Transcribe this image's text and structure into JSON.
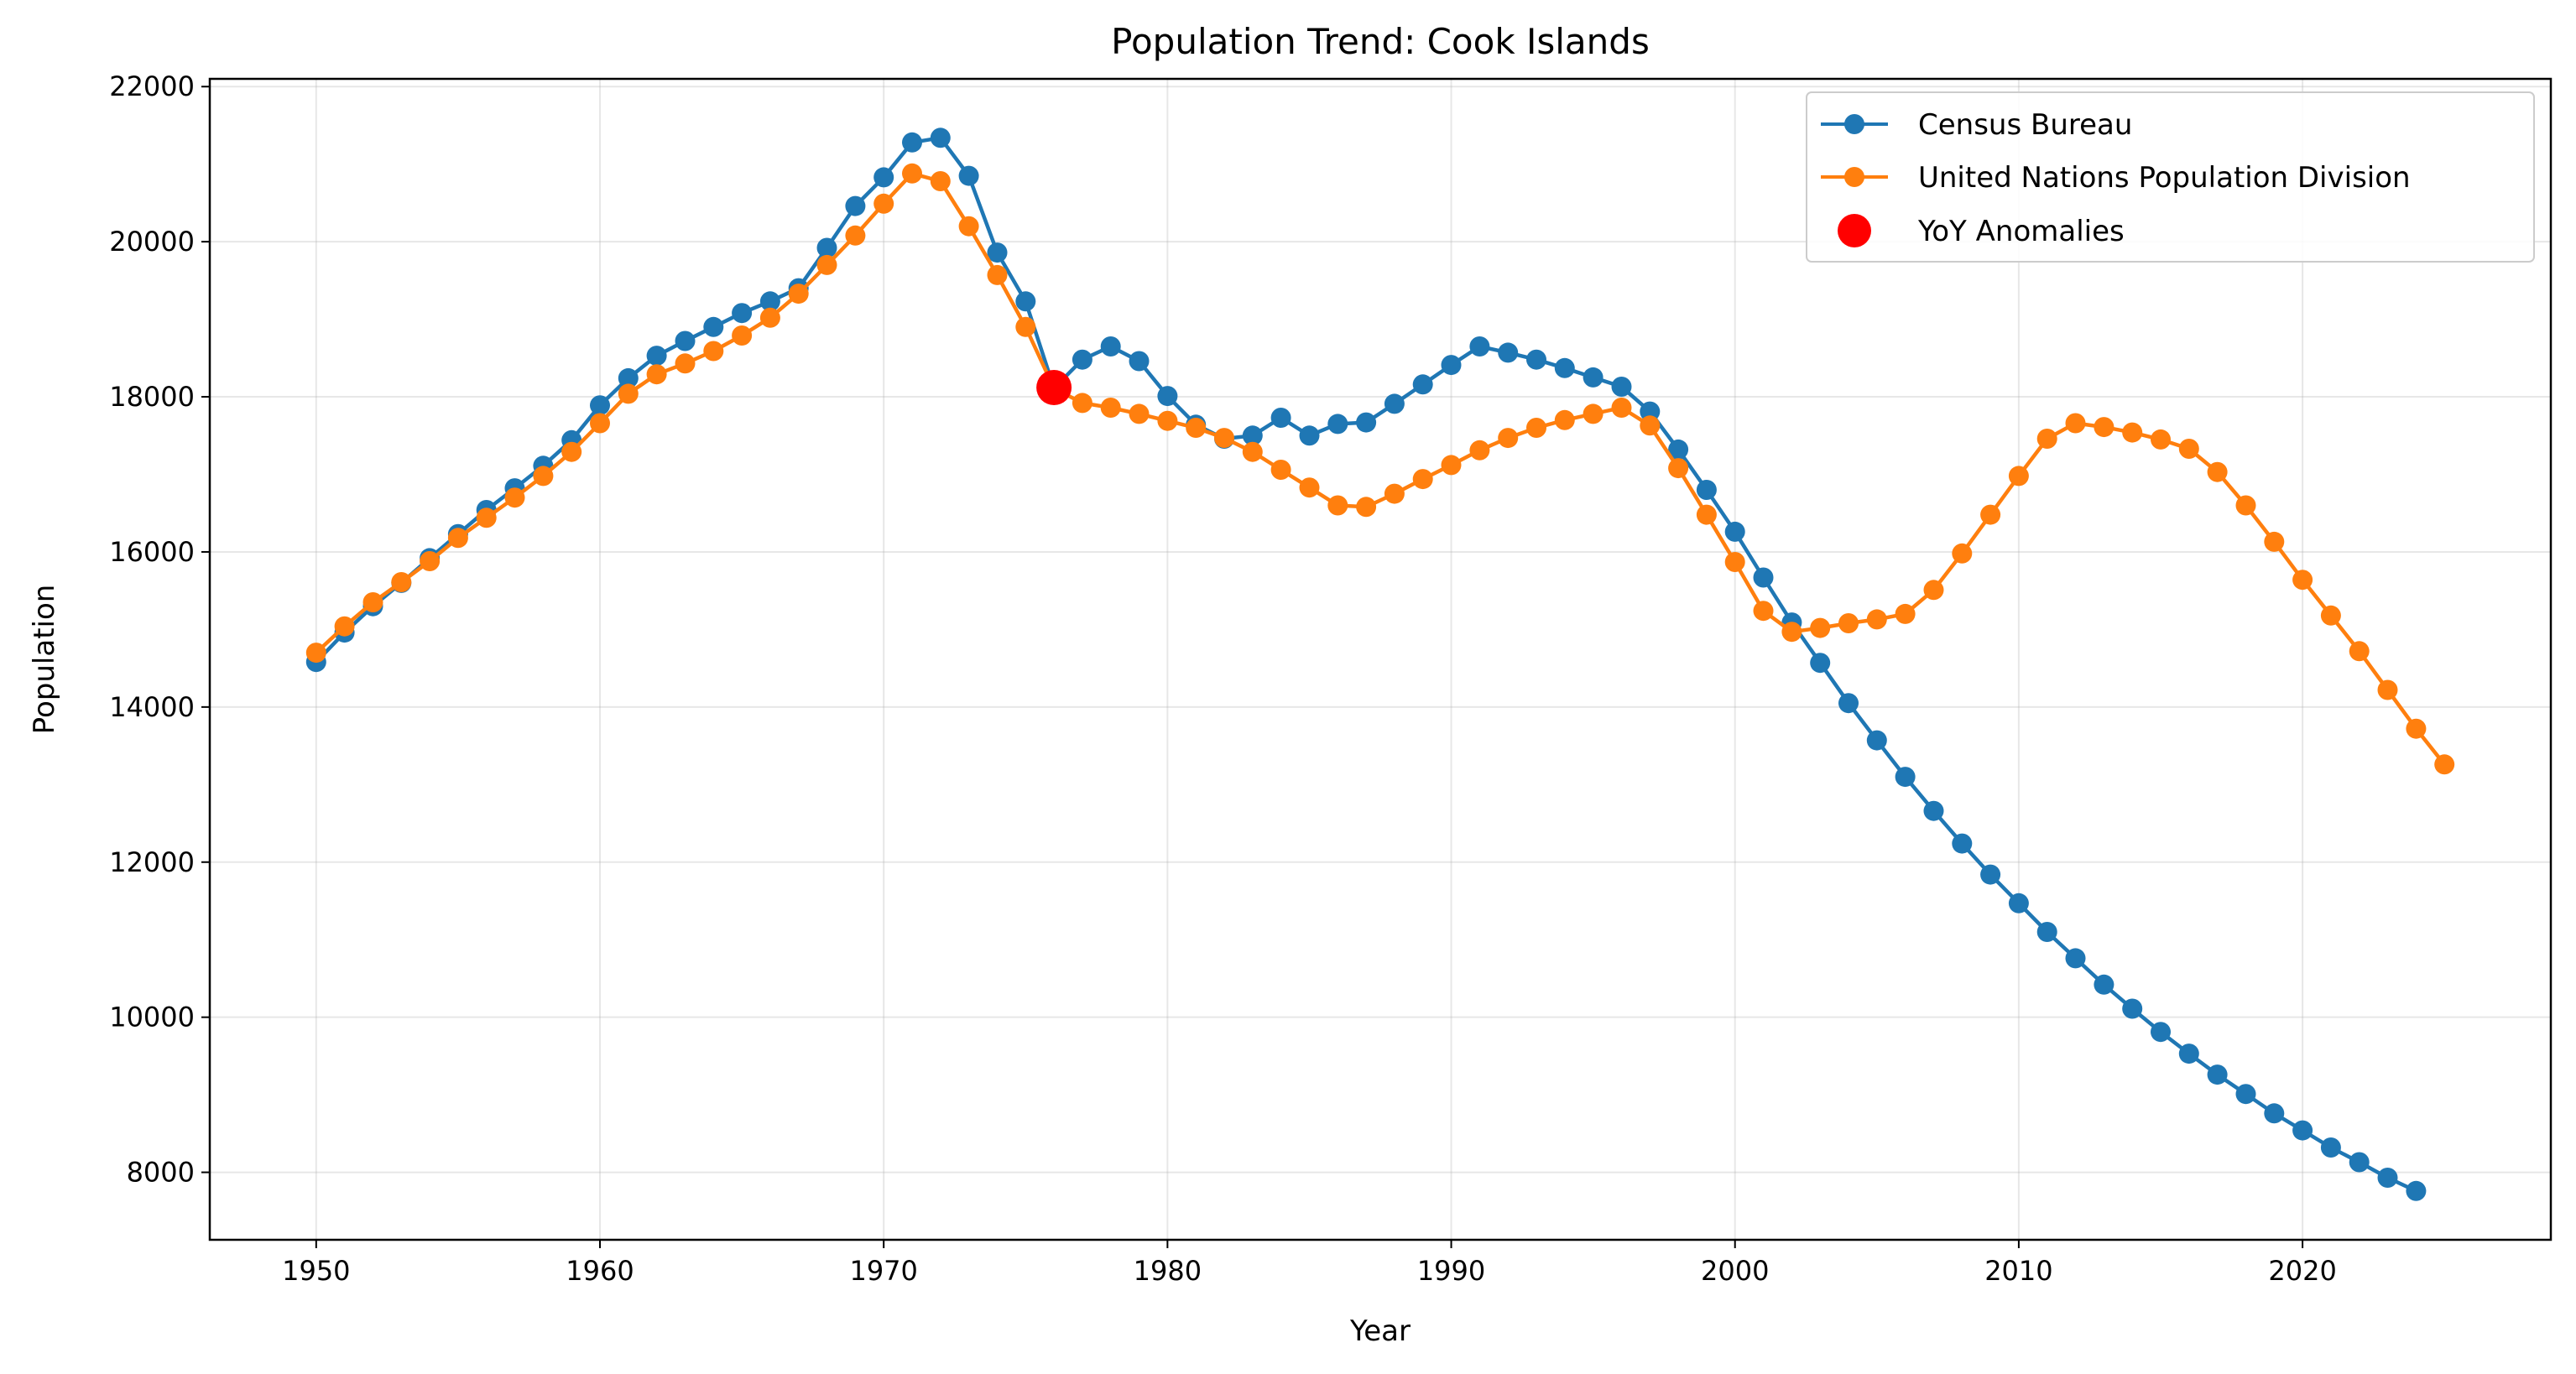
{
  "chart_data": {
    "type": "line",
    "title": "Population Trend: Cook Islands",
    "xlabel": "Year",
    "ylabel": "Population",
    "xlim": [
      1946.25,
      2028.75
    ],
    "ylim": [
      7130,
      22100
    ],
    "x_ticks": [
      1950,
      1960,
      1970,
      1980,
      1990,
      2000,
      2010,
      2020
    ],
    "y_ticks": [
      8000,
      10000,
      12000,
      14000,
      16000,
      18000,
      20000,
      22000
    ],
    "grid": true,
    "legend_position": "top-right",
    "series": [
      {
        "name": "Census Bureau",
        "color": "#1f77b4",
        "x": [
          1950,
          1951,
          1952,
          1953,
          1954,
          1955,
          1956,
          1957,
          1958,
          1959,
          1960,
          1961,
          1962,
          1963,
          1964,
          1965,
          1966,
          1967,
          1968,
          1969,
          1970,
          1971,
          1972,
          1973,
          1974,
          1975,
          1976,
          1977,
          1978,
          1979,
          1980,
          1981,
          1982,
          1983,
          1984,
          1985,
          1986,
          1987,
          1988,
          1989,
          1990,
          1991,
          1992,
          1993,
          1994,
          1995,
          1996,
          1997,
          1998,
          1999,
          2000,
          2001,
          2002,
          2003,
          2004,
          2005,
          2006,
          2007,
          2008,
          2009,
          2010,
          2011,
          2012,
          2013,
          2014,
          2015,
          2016,
          2017,
          2018,
          2019,
          2020,
          2021,
          2022,
          2023,
          2024
        ],
        "values": [
          14580,
          14960,
          15300,
          15600,
          15920,
          16230,
          16540,
          16820,
          17110,
          17440,
          17890,
          18240,
          18530,
          18720,
          18900,
          19080,
          19230,
          19400,
          19920,
          20460,
          20830,
          21280,
          21340,
          20850,
          19860,
          19230,
          18110,
          18480,
          18650,
          18460,
          18010,
          17640,
          17460,
          17500,
          17730,
          17500,
          17650,
          17670,
          17910,
          18160,
          18410,
          18650,
          18570,
          18480,
          18370,
          18250,
          18130,
          17810,
          17320,
          16800,
          16260,
          15670,
          15090,
          14570,
          14050,
          13570,
          13100,
          12660,
          12240,
          11840,
          11470,
          11100,
          10760,
          10420,
          10110,
          9810,
          9530,
          9260,
          9010,
          8760,
          8540,
          8320,
          8130,
          7930,
          7760
        ]
      },
      {
        "name": "United Nations Population Division",
        "color": "#ff7f0e",
        "x": [
          1950,
          1951,
          1952,
          1953,
          1954,
          1955,
          1956,
          1957,
          1958,
          1959,
          1960,
          1961,
          1962,
          1963,
          1964,
          1965,
          1966,
          1967,
          1968,
          1969,
          1970,
          1971,
          1972,
          1973,
          1974,
          1975,
          1976,
          1977,
          1978,
          1979,
          1980,
          1981,
          1982,
          1983,
          1984,
          1985,
          1986,
          1987,
          1988,
          1989,
          1990,
          1991,
          1992,
          1993,
          1994,
          1995,
          1996,
          1997,
          1998,
          1999,
          2000,
          2001,
          2002,
          2003,
          2004,
          2005,
          2006,
          2007,
          2008,
          2009,
          2010,
          2011,
          2012,
          2013,
          2014,
          2015,
          2016,
          2017,
          2018,
          2019,
          2020,
          2021,
          2022,
          2023,
          2024,
          2025
        ],
        "values": [
          14700,
          15040,
          15350,
          15610,
          15880,
          16180,
          16440,
          16700,
          16980,
          17290,
          17660,
          18040,
          18290,
          18430,
          18590,
          18790,
          19020,
          19330,
          19700,
          20080,
          20490,
          20880,
          20780,
          20200,
          19570,
          18900,
          18110,
          17920,
          17860,
          17780,
          17690,
          17600,
          17470,
          17290,
          17060,
          16830,
          16600,
          16580,
          16750,
          16940,
          17120,
          17310,
          17470,
          17600,
          17700,
          17780,
          17860,
          17630,
          17080,
          16480,
          15870,
          15240,
          14970,
          15020,
          15080,
          15130,
          15200,
          15510,
          15980,
          16480,
          16980,
          17460,
          17660,
          17610,
          17540,
          17450,
          17330,
          17030,
          16600,
          16130,
          15640,
          15180,
          14720,
          14220,
          13720,
          13260
        ]
      }
    ],
    "anomalies": {
      "name": "YoY Anomalies",
      "color": "#ff0000",
      "points": [
        {
          "x": 1976,
          "y": 18120
        }
      ]
    }
  }
}
